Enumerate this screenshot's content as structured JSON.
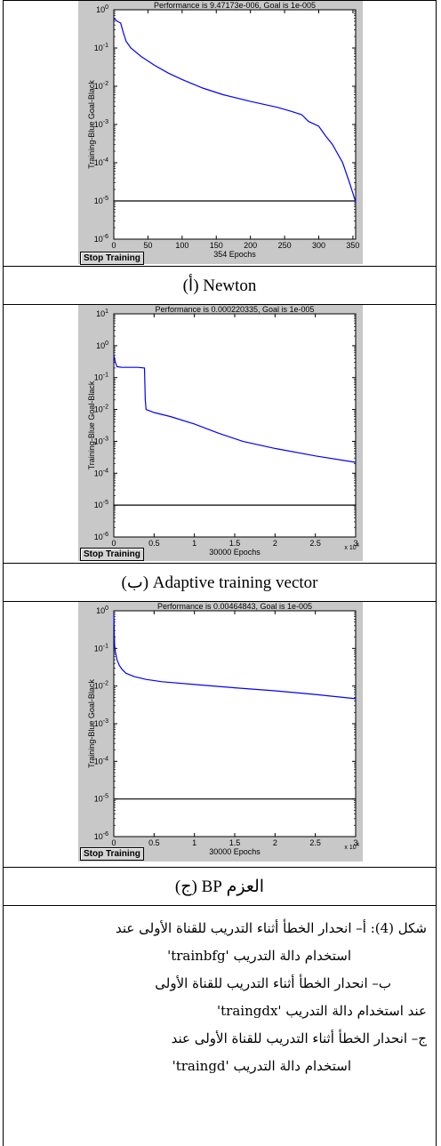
{
  "button": {
    "stop_training": "Stop Training"
  },
  "chart_data": [
    {
      "type": "line",
      "title": "Performance is 9.47173e-006, Goal is 1e-005",
      "ylabel": "Training-Blue  Goal-Black",
      "xlabel": "354 Epochs",
      "xlim": [
        0,
        354
      ],
      "ylim_log10": [
        -6,
        0
      ],
      "y_scale": "log",
      "x_ticks": [
        0,
        50,
        100,
        150,
        200,
        250,
        300,
        350
      ],
      "x_tick_labels": [
        "0",
        "50",
        "100",
        "150",
        "200",
        "250",
        "300",
        "350"
      ],
      "y_tick_labels": [
        "10^0",
        "10^-1",
        "10^-2",
        "10^-3",
        "10^-4",
        "10^-5",
        "10^-6"
      ],
      "x_multiplier": "",
      "goal": 1e-05,
      "series": [
        {
          "color": "#0000ff",
          "x": [
            0,
            5,
            10,
            14,
            18,
            25,
            40,
            60,
            80,
            100,
            130,
            160,
            200,
            240,
            260,
            275,
            285,
            300,
            310,
            320,
            335,
            345,
            354
          ],
          "y": [
            0.6,
            0.5,
            0.45,
            0.25,
            0.15,
            0.1,
            0.06,
            0.035,
            0.022,
            0.015,
            0.009,
            0.006,
            0.004,
            0.0028,
            0.0022,
            0.0018,
            0.0012,
            0.0009,
            0.0005,
            0.0003,
            0.0001,
            3e-05,
            9.5e-06
          ]
        }
      ]
    },
    {
      "type": "line",
      "title": "Performance is 0.000220335, Goal is 1e-005",
      "ylabel": "Training-Blue  Goal-Black",
      "xlabel": "30000 Epochs",
      "xlim": [
        0,
        3
      ],
      "ylim_log10": [
        -6,
        1
      ],
      "y_scale": "log",
      "x_ticks": [
        0,
        0.5,
        1,
        1.5,
        2,
        2.5,
        3
      ],
      "x_tick_labels": [
        "0",
        "0.5",
        "1",
        "1.5",
        "2",
        "2.5",
        "3"
      ],
      "y_tick_labels": [
        "10^1",
        "10^0",
        "10^-1",
        "10^-2",
        "10^-3",
        "10^-4",
        "10^-5",
        "10^-6"
      ],
      "x_multiplier": "x 10^4",
      "goal": 1e-05,
      "series": [
        {
          "color": "#0000ff",
          "x": [
            0,
            0.02,
            0.04,
            0.1,
            0.2,
            0.3,
            0.38,
            0.39,
            0.4,
            0.5,
            0.7,
            1.0,
            1.3,
            1.6,
            2.0,
            2.5,
            3.0
          ],
          "y": [
            0.5,
            0.3,
            0.22,
            0.21,
            0.21,
            0.21,
            0.2,
            0.02,
            0.01,
            0.008,
            0.006,
            0.0035,
            0.0018,
            0.001,
            0.0006,
            0.00035,
            0.00022
          ]
        }
      ]
    },
    {
      "type": "line",
      "title": "Performance is 0.00464843, Goal is 1e-005",
      "ylabel": "Training-Blue  Goal-Black",
      "xlabel": "30000 Epochs",
      "xlim": [
        0,
        3
      ],
      "ylim_log10": [
        -6,
        0
      ],
      "y_scale": "log",
      "x_ticks": [
        0,
        0.5,
        1,
        1.5,
        2,
        2.5,
        3
      ],
      "x_tick_labels": [
        "0",
        "0.5",
        "1",
        "1.5",
        "2",
        "2.5",
        "3"
      ],
      "y_tick_labels": [
        "10^0",
        "10^-1",
        "10^-2",
        "10^-3",
        "10^-4",
        "10^-5",
        "10^-6"
      ],
      "x_multiplier": "x 10^4",
      "goal": 1e-05,
      "series": [
        {
          "color": "#0000ff",
          "x": [
            0,
            0.01,
            0.02,
            0.04,
            0.07,
            0.1,
            0.15,
            0.25,
            0.4,
            0.6,
            1.0,
            1.5,
            2.0,
            2.5,
            3.0
          ],
          "y": [
            0.8,
            0.12,
            0.08,
            0.05,
            0.035,
            0.028,
            0.022,
            0.018,
            0.015,
            0.013,
            0.011,
            0.009,
            0.0075,
            0.006,
            0.0046
          ]
        }
      ]
    }
  ],
  "captions": [
    "(أ) Newton",
    "(ب) Adaptive training vector",
    "العزم BP (ج)"
  ],
  "note": {
    "line1": "شكل (4): أ– انحدار الخطأ أثناء التدريب للقناة الأولى عند",
    "line2": "استخدام دالة التدريب 'trainbfg'",
    "line3": "ب– انحدار الخطأ أثناء التدريب للقناة الأولى",
    "line4": "عند استخدام دالة التدريب  'traingdx'",
    "line5": "ج– انحدار الخطأ أثناء التدريب للقناة الأولى عند",
    "line6": "استخدام دالة التدريب 'traingd'"
  }
}
